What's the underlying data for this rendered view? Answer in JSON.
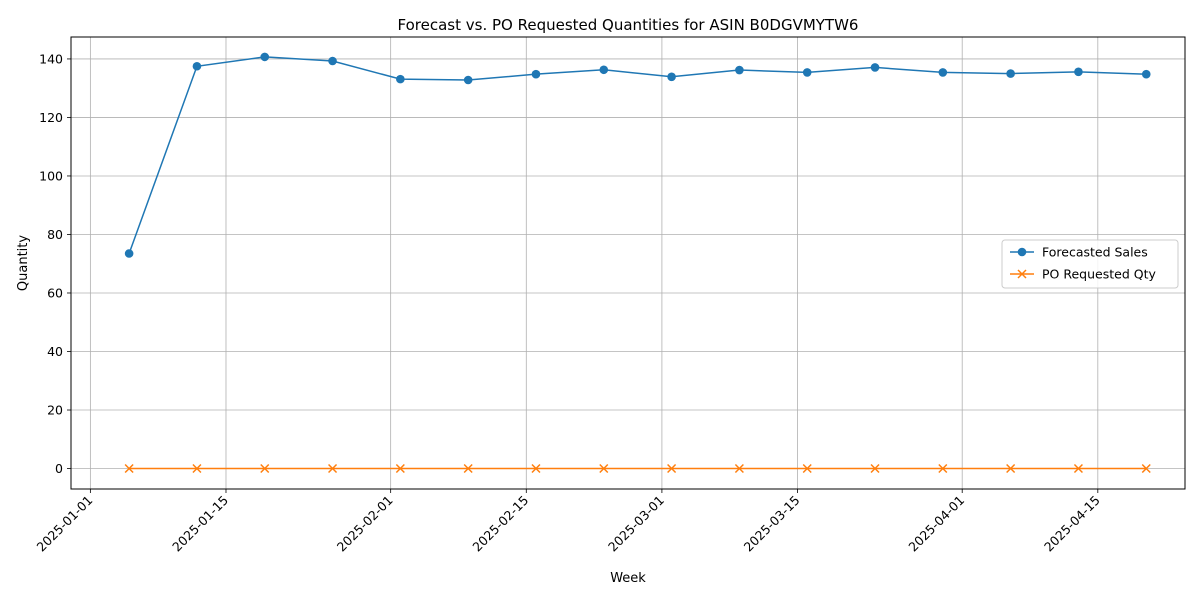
{
  "chart_data": {
    "type": "line",
    "title": "Forecast vs. PO Requested Quantities for ASIN B0DGVMYTW6",
    "xlabel": "Week",
    "ylabel": "Quantity",
    "x": [
      "2025-01-05",
      "2025-01-12",
      "2025-01-19",
      "2025-01-26",
      "2025-02-02",
      "2025-02-09",
      "2025-02-16",
      "2025-02-23",
      "2025-03-02",
      "2025-03-09",
      "2025-03-16",
      "2025-03-23",
      "2025-03-30",
      "2025-04-06",
      "2025-04-13",
      "2025-04-20"
    ],
    "series": [
      {
        "name": "Forecasted Sales",
        "color": "#1f77b4",
        "marker": "circle",
        "values": [
          73.5,
          137.5,
          140.7,
          139.3,
          133.1,
          132.8,
          134.8,
          136.3,
          133.9,
          136.2,
          135.4,
          137.1,
          135.4,
          135.0,
          135.6,
          134.8
        ]
      },
      {
        "name": "PO Requested Qty",
        "color": "#ff7f0e",
        "marker": "x",
        "values": [
          0,
          0,
          0,
          0,
          0,
          0,
          0,
          0,
          0,
          0,
          0,
          0,
          0,
          0,
          0,
          0
        ]
      }
    ],
    "x_ticks": [
      "2025-01-01",
      "2025-01-15",
      "2025-02-01",
      "2025-02-15",
      "2025-03-01",
      "2025-03-15",
      "2025-04-01",
      "2025-04-15"
    ],
    "y_ticks": [
      0,
      20,
      40,
      60,
      80,
      100,
      120,
      140
    ],
    "xlim": [
      "2024-12-30",
      "2025-04-24"
    ],
    "ylim": [
      -7,
      147.5
    ],
    "grid": true,
    "legend_position": "center-right"
  }
}
